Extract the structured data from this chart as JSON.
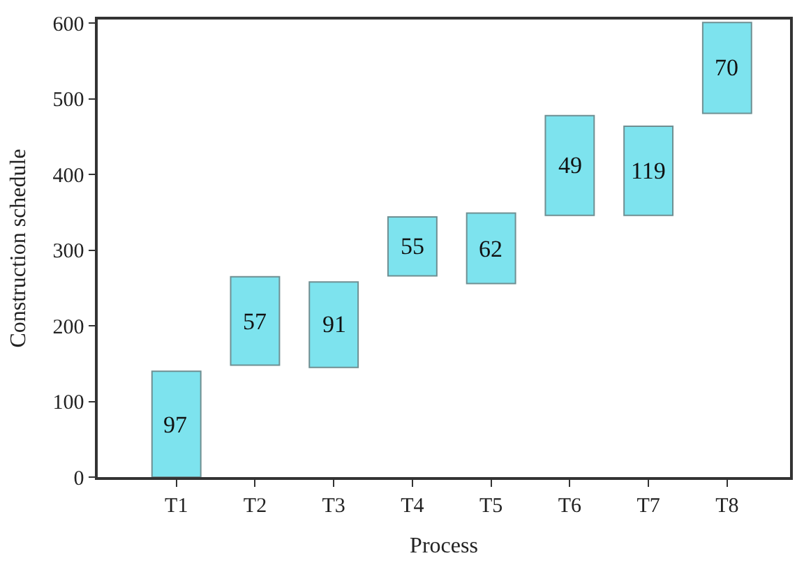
{
  "chart_data": {
    "type": "bar",
    "xlabel": "Process",
    "ylabel": "Construction schedule",
    "categories": [
      "T1",
      "T2",
      "T3",
      "T4",
      "T5",
      "T6",
      "T7",
      "T8"
    ],
    "base": [
      0,
      148,
      145,
      266,
      256,
      346,
      346,
      481
    ],
    "values": [
      140,
      117,
      113,
      78,
      93,
      132,
      118,
      120
    ],
    "annotations": [
      "97",
      "57",
      "91",
      "55",
      "62",
      "49",
      "119",
      "70"
    ],
    "color": "#7de3ee",
    "ylim": [
      0,
      605
    ],
    "yticks": [
      0,
      100,
      200,
      300,
      400,
      500,
      600
    ],
    "legend": false
  }
}
